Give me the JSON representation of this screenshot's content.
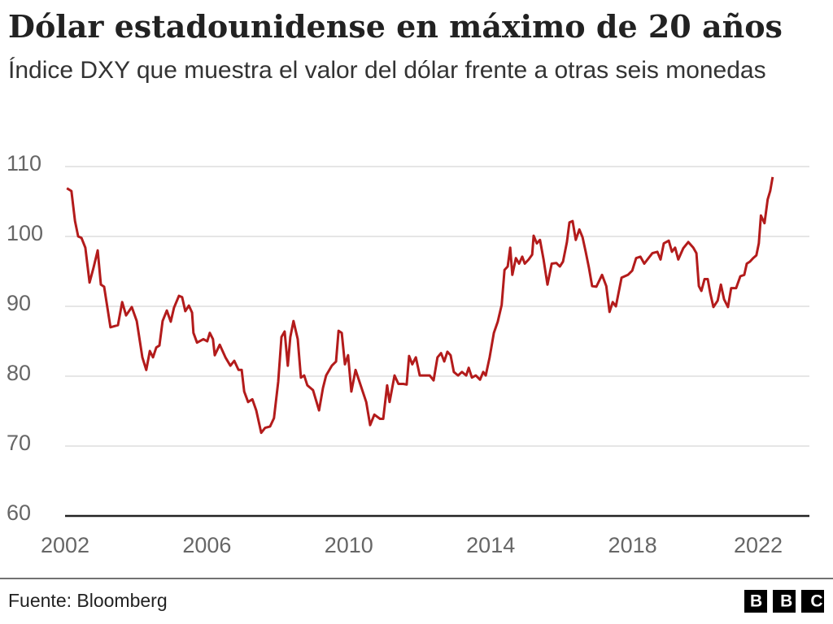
{
  "chart_data": {
    "type": "line",
    "title": "Dólar estadounidense en máximo de 20 años",
    "subtitle": "Índice DXY que muestra el valor del dólar frente a otras seis monedas",
    "source": "Fuente: Bloomberg",
    "logo": "BBC",
    "color": "#b31b1b",
    "grid": true,
    "xlim": [
      2002,
      2022.5
    ],
    "xticks": [
      2002,
      2006,
      2010,
      2014,
      2018,
      2022
    ],
    "ylim": [
      60,
      110
    ],
    "yticks": [
      60,
      70,
      80,
      90,
      100,
      110
    ],
    "x": [
      2002.05,
      2002.18,
      2002.28,
      2002.37,
      2002.46,
      2002.57,
      2002.69,
      2002.8,
      2002.92,
      2003.01,
      2003.1,
      2003.28,
      2003.49,
      2003.61,
      2003.72,
      2003.88,
      2004.02,
      2004.18,
      2004.29,
      2004.39,
      2004.48,
      2004.57,
      2004.66,
      2004.75,
      2004.87,
      2004.98,
      2005.07,
      2005.21,
      2005.3,
      2005.39,
      2005.49,
      2005.58,
      2005.62,
      2005.72,
      2005.9,
      2006.01,
      2006.08,
      2006.17,
      2006.22,
      2006.36,
      2006.52,
      2006.66,
      2006.77,
      2006.89,
      2006.98,
      2007.05,
      2007.16,
      2007.28,
      2007.39,
      2007.53,
      2007.64,
      2007.78,
      2007.89,
      2008.01,
      2008.1,
      2008.19,
      2008.28,
      2008.35,
      2008.44,
      2008.56,
      2008.65,
      2008.74,
      2008.83,
      2008.99,
      2009.16,
      2009.27,
      2009.36,
      2009.52,
      2009.64,
      2009.71,
      2009.8,
      2009.89,
      2009.98,
      2010.07,
      2010.19,
      2010.3,
      2010.49,
      2010.6,
      2010.72,
      2010.88,
      2010.97,
      2011.08,
      2011.15,
      2011.29,
      2011.4,
      2011.54,
      2011.63,
      2011.7,
      2011.79,
      2011.89,
      2012.0,
      2012.16,
      2012.28,
      2012.39,
      2012.5,
      2012.6,
      2012.69,
      2012.78,
      2012.87,
      2012.96,
      2013.08,
      2013.19,
      2013.31,
      2013.38,
      2013.47,
      2013.58,
      2013.7,
      2013.79,
      2013.86,
      2013.97,
      2014.09,
      2014.2,
      2014.31,
      2014.39,
      2014.48,
      2014.55,
      2014.61,
      2014.71,
      2014.8,
      2014.89,
      2014.96,
      2015.07,
      2015.17,
      2015.21,
      2015.3,
      2015.39,
      2015.49,
      2015.6,
      2015.72,
      2015.85,
      2015.95,
      2016.04,
      2016.15,
      2016.22,
      2016.31,
      2016.4,
      2016.5,
      2016.59,
      2016.68,
      2016.77,
      2016.86,
      2016.98,
      2017.14,
      2017.26,
      2017.35,
      2017.44,
      2017.53,
      2017.69,
      2017.87,
      2017.99,
      2018.1,
      2018.22,
      2018.33,
      2018.45,
      2018.56,
      2018.7,
      2018.79,
      2018.88,
      2019.02,
      2019.11,
      2019.2,
      2019.29,
      2019.43,
      2019.57,
      2019.71,
      2019.8,
      2019.87,
      2019.94,
      2020.03,
      2020.12,
      2020.19,
      2020.28,
      2020.4,
      2020.49,
      2020.58,
      2020.69,
      2020.78,
      2020.92,
      2021.04,
      2021.15,
      2021.22,
      2021.31,
      2021.4,
      2021.49,
      2021.56,
      2021.62,
      2021.72,
      2021.81,
      2021.88,
      2021.95
    ],
    "values": [
      106.9,
      106.5,
      102.2,
      100,
      99.8,
      98.4,
      93.4,
      95.5,
      98,
      93.1,
      92.8,
      87,
      87.3,
      90.6,
      88.7,
      89.9,
      87.9,
      82.7,
      80.9,
      83.6,
      82.7,
      84.1,
      84.4,
      87.9,
      89.4,
      87.8,
      89.8,
      91.5,
      91.3,
      89.3,
      90.1,
      89.1,
      86.2,
      84.8,
      85.3,
      85,
      86.2,
      85.3,
      83,
      84.5,
      82.7,
      81.5,
      82.2,
      80.9,
      80.9,
      77.8,
      76.3,
      76.7,
      75.1,
      71.9,
      72.6,
      72.8,
      74,
      79.2,
      85.6,
      86.4,
      81.5,
      85.6,
      87.9,
      85.3,
      79.8,
      80.1,
      78.7,
      78,
      75.1,
      78.3,
      80.1,
      81.5,
      82.1,
      86.5,
      86.2,
      81.7,
      83,
      77.8,
      80.9,
      79.2,
      76.3,
      73,
      74.5,
      73.9,
      73.9,
      78.7,
      76.3,
      80.1,
      78.9,
      78.9,
      78.8,
      82.9,
      81.7,
      82.7,
      80.1,
      80.1,
      80.1,
      79.4,
      82.7,
      83.3,
      82.1,
      83.5,
      83,
      80.6,
      80.1,
      80.6,
      80.1,
      81.2,
      79.8,
      80.1,
      79.5,
      80.6,
      80.1,
      82.7,
      86.2,
      87.8,
      90.2,
      95.2,
      95.7,
      98.4,
      94.5,
      96.9,
      96.1,
      97.1,
      96.1,
      96.7,
      97.4,
      100.1,
      99,
      99.5,
      96.7,
      93.1,
      96.1,
      96.2,
      95.7,
      96.4,
      99.2,
      102,
      102.2,
      99.5,
      101,
      99.9,
      97.8,
      95.5,
      92.9,
      92.8,
      94.5,
      92.9,
      89.2,
      90.6,
      90,
      94.1,
      94.5,
      95.1,
      96.9,
      97.1,
      96.1,
      96.9,
      97.6,
      97.8,
      96.7,
      99,
      99.4,
      97.8,
      98.4,
      96.7,
      98.3,
      99.2,
      98.4,
      97.6,
      92.9,
      92.2,
      93.9,
      93.9,
      91.9,
      89.9,
      90.8,
      93.1,
      91,
      89.9,
      92.6,
      92.6,
      94.3,
      94.5,
      96.1,
      96.4,
      96.9,
      97.3,
      99,
      103,
      101.9,
      105.3,
      106.5,
      108.5
    ]
  }
}
